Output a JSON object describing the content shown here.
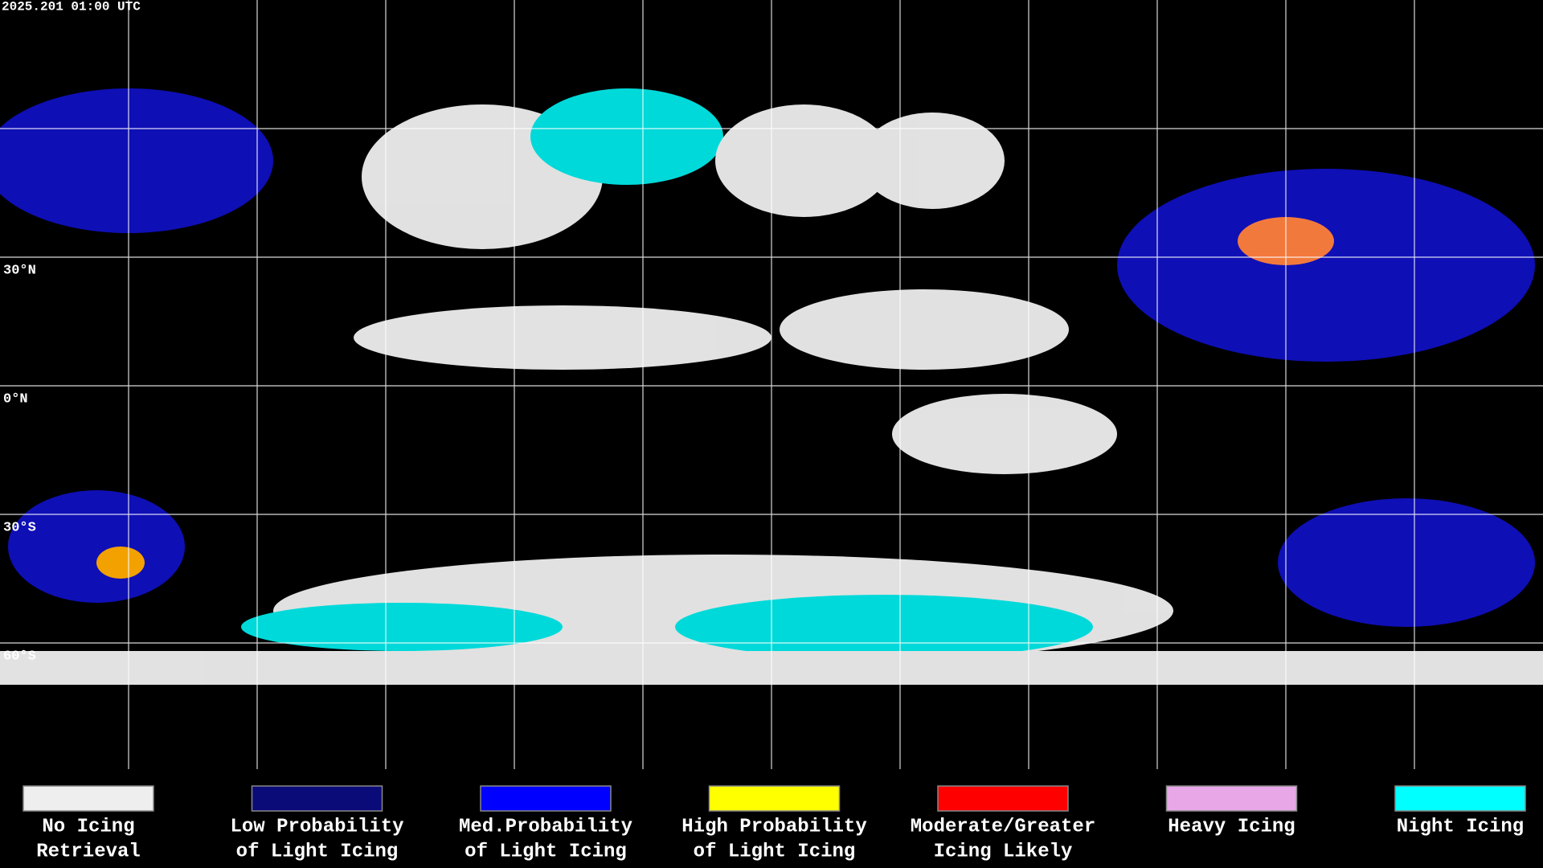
{
  "timestamp": "2025.201 01:00 UTC",
  "map": {
    "latitude_labels": [
      "30°N",
      "0°N",
      "30°S",
      "60°S"
    ]
  },
  "legend": [
    {
      "label_lines": [
        "No Icing",
        "Retrieval"
      ],
      "color": "#eeeeee"
    },
    {
      "label_lines": [
        "Low Probability",
        "of Light Icing"
      ],
      "color": "#0a0a78"
    },
    {
      "label_lines": [
        "Med.Probability",
        "of Light Icing"
      ],
      "color": "#0000ff"
    },
    {
      "label_lines": [
        "High Probability",
        "of Light Icing"
      ],
      "color": "#ffff00"
    },
    {
      "label_lines": [
        "Moderate/Greater",
        "Icing Likely"
      ],
      "color": "#ff0000"
    },
    {
      "label_lines": [
        "Heavy Icing"
      ],
      "color": "#e8a8e8"
    },
    {
      "label_lines": [
        "Night Icing"
      ],
      "color": "#00ffff"
    }
  ]
}
